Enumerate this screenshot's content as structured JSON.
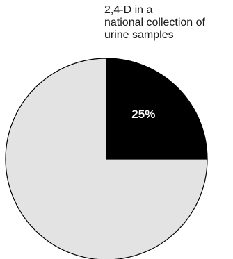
{
  "chart_data": {
    "type": "pie",
    "title_lines": [
      "2,4-D in a",
      "national collection of",
      "urine samples"
    ],
    "slices": [
      {
        "value": 25,
        "label": "25%",
        "color": "#000000",
        "label_color": "#ffffff"
      },
      {
        "value": 75,
        "label": "",
        "color": "#e3e3e3",
        "label_color": "#000000"
      }
    ],
    "start_angle": "12 o'clock",
    "direction": "clockwise",
    "outline_color": "#000000",
    "legend": "none"
  }
}
